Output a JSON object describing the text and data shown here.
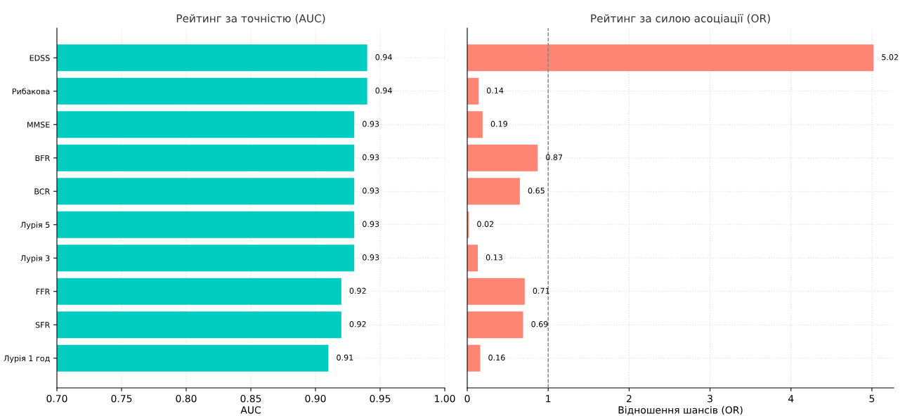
{
  "chart_data": [
    {
      "type": "bar",
      "orientation": "horizontal",
      "title": "Рейтинг за точністю (AUC)",
      "xlabel": "AUC",
      "categories": [
        "EDSS",
        "Рибакова",
        "MMSE",
        "BFR",
        "BCR",
        "Лурія 5",
        "Лурія 3",
        "FFR",
        "SFR",
        "Лурія 1 год"
      ],
      "values": [
        0.94,
        0.94,
        0.93,
        0.93,
        0.93,
        0.93,
        0.93,
        0.92,
        0.92,
        0.91
      ],
      "color": "#00cdc0",
      "xlim": [
        0.7,
        1.0
      ],
      "xticks": [
        {
          "value": 0.7,
          "label": "0.70"
        },
        {
          "value": 0.75,
          "label": "0.75"
        },
        {
          "value": 0.8,
          "label": "0.80"
        },
        {
          "value": 0.85,
          "label": "0.85"
        },
        {
          "value": 0.9,
          "label": "0.90"
        },
        {
          "value": 0.95,
          "label": "0.95"
        },
        {
          "value": 1.0,
          "label": "1.00"
        }
      ],
      "data_labels": true,
      "grid": true
    },
    {
      "type": "bar",
      "orientation": "horizontal",
      "title": "Рейтинг за силою асоціації (OR)",
      "xlabel": "Відношення шансів (OR)",
      "categories": [
        null,
        null,
        null,
        null,
        null,
        null,
        null,
        null,
        null,
        null
      ],
      "values": [
        5.02,
        0.14,
        0.19,
        0.87,
        0.65,
        0.02,
        0.13,
        0.71,
        0.69,
        0.16
      ],
      "color": "#ff8575",
      "xlim": [
        0,
        5.27
      ],
      "xticks": [
        0,
        1,
        2,
        3,
        4,
        5
      ],
      "ref_lines": [
        {
          "axis": "x",
          "value": 1,
          "color": "#808080",
          "line_style": "dashed"
        }
      ],
      "data_labels": true,
      "grid": true,
      "tick_labels": "x"
    }
  ]
}
